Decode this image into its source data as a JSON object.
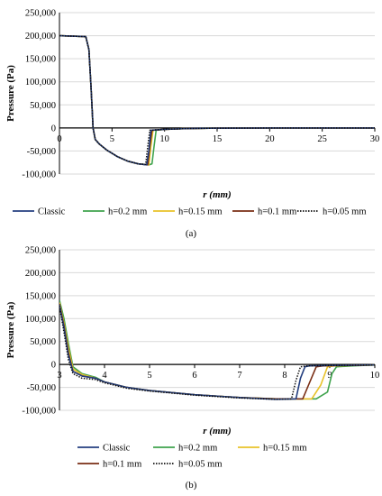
{
  "colors": {
    "Classic": "#243F80",
    "h=0.2 mm": "#3FA34D",
    "h=0.15 mm": "#E8C22A",
    "h=0.1 mm": "#7A2E14",
    "h=0.05 mm": "#111111",
    "grid": "#d9d9d9",
    "axis": "#000000"
  },
  "chart_data": [
    {
      "type": "line",
      "panel_label": "(a)",
      "xlabel": "r (mm)",
      "ylabel": "Pressure (Pa)",
      "xlim": [
        0,
        30
      ],
      "ylim": [
        -100000,
        250000
      ],
      "x_ticks": [
        0,
        5,
        10,
        15,
        20,
        25,
        30
      ],
      "x_tick_labels": [
        "0",
        "5",
        "10",
        "15",
        "20",
        "25",
        "30"
      ],
      "y_ticks": [
        250000,
        200000,
        150000,
        100000,
        50000,
        0,
        -50000,
        -100000
      ],
      "y_tick_labels": [
        "250,000",
        "200,000",
        "150,000",
        "100,000",
        "50,000",
        "0",
        "-50,000",
        "-100,000"
      ],
      "grid": "horizontal",
      "legend_position": "bottom",
      "series": [
        {
          "name": "Classic",
          "style": "solid",
          "x": [
            0,
            2.5,
            2.8,
            3.0,
            3.2,
            3.4,
            3.8,
            4.5,
            5.5,
            6.5,
            7.5,
            8.3,
            8.5,
            8.7,
            10,
            12,
            15,
            20,
            25,
            30
          ],
          "y": [
            200000,
            198000,
            170000,
            90000,
            0,
            -25000,
            -35000,
            -48000,
            -62000,
            -72000,
            -78000,
            -80000,
            -50000,
            -5000,
            -3000,
            -1500,
            -500,
            0,
            0,
            0
          ]
        },
        {
          "name": "h=0.2 mm",
          "style": "solid",
          "x": [
            0,
            2.5,
            2.8,
            3.0,
            3.2,
            3.4,
            3.8,
            4.5,
            5.5,
            6.5,
            7.5,
            8.5,
            8.8,
            9.0,
            9.2,
            10,
            12,
            15,
            20,
            25,
            30
          ],
          "y": [
            200000,
            198000,
            170000,
            90000,
            0,
            -25000,
            -35000,
            -48000,
            -62000,
            -72000,
            -78000,
            -80000,
            -78000,
            -40000,
            -5000,
            -3000,
            -1500,
            -500,
            0,
            0,
            0
          ]
        },
        {
          "name": "h=0.15 mm",
          "style": "solid",
          "x": [
            0,
            2.5,
            2.8,
            3.0,
            3.2,
            3.4,
            3.8,
            4.5,
            5.5,
            6.5,
            7.5,
            8.5,
            8.7,
            8.9,
            10,
            12,
            15,
            20,
            25,
            30
          ],
          "y": [
            200000,
            198000,
            170000,
            90000,
            0,
            -25000,
            -35000,
            -48000,
            -62000,
            -72000,
            -78000,
            -80000,
            -40000,
            -5000,
            -3000,
            -1500,
            -500,
            0,
            0,
            0
          ]
        },
        {
          "name": "h=0.1 mm",
          "style": "solid",
          "x": [
            0,
            2.5,
            2.8,
            3.0,
            3.2,
            3.4,
            3.8,
            4.5,
            5.5,
            6.5,
            7.5,
            8.4,
            8.6,
            8.8,
            10,
            12,
            15,
            20,
            25,
            30
          ],
          "y": [
            200000,
            198000,
            170000,
            90000,
            0,
            -25000,
            -35000,
            -48000,
            -62000,
            -72000,
            -78000,
            -80000,
            -40000,
            -5000,
            -3000,
            -1500,
            -500,
            0,
            0,
            0
          ]
        },
        {
          "name": "h=0.05 mm",
          "style": "dotted",
          "x": [
            0,
            2.5,
            2.8,
            3.0,
            3.2,
            3.4,
            3.8,
            4.5,
            5.5,
            6.5,
            7.5,
            8.2,
            8.4,
            8.6,
            10,
            12,
            15,
            20,
            25,
            30
          ],
          "y": [
            200000,
            198000,
            170000,
            90000,
            0,
            -25000,
            -35000,
            -48000,
            -62000,
            -72000,
            -78000,
            -79000,
            -40000,
            -5000,
            -3000,
            -1500,
            -500,
            0,
            0,
            0
          ]
        }
      ]
    },
    {
      "type": "line",
      "panel_label": "(b)",
      "xlabel": "r (mm)",
      "ylabel": "Pressure (Pa)",
      "xlim": [
        3,
        10
      ],
      "ylim": [
        -100000,
        250000
      ],
      "x_ticks": [
        3,
        4,
        5,
        6,
        7,
        8,
        9,
        10
      ],
      "x_tick_labels": [
        "3",
        "4",
        "5",
        "6",
        "7",
        "8",
        "9",
        "10"
      ],
      "y_ticks": [
        250000,
        200000,
        150000,
        100000,
        50000,
        0,
        -50000,
        -100000
      ],
      "y_tick_labels": [
        "250,000",
        "200,000",
        "150,000",
        "100,000",
        "50,000",
        "0",
        "-50,000",
        "-100,000"
      ],
      "grid": "horizontal",
      "legend_position": "bottom",
      "series": [
        {
          "name": "Classic",
          "style": "solid",
          "x": [
            3.0,
            3.1,
            3.2,
            3.3,
            3.5,
            3.8,
            4.0,
            4.5,
            5.0,
            6.0,
            7.0,
            7.8,
            8.25,
            8.35,
            8.45,
            8.55,
            9.0,
            10.0
          ],
          "y": [
            130000,
            80000,
            20000,
            -15000,
            -25000,
            -30000,
            -38000,
            -50000,
            -57000,
            -66000,
            -72000,
            -76000,
            -75000,
            -30000,
            -5000,
            -3000,
            -2000,
            -1000
          ]
        },
        {
          "name": "h=0.2 mm",
          "style": "solid",
          "x": [
            3.0,
            3.1,
            3.2,
            3.3,
            3.5,
            3.8,
            4.0,
            4.5,
            5.0,
            6.0,
            7.0,
            7.8,
            8.7,
            8.95,
            9.05,
            9.15,
            9.5,
            10.0
          ],
          "y": [
            140000,
            100000,
            45000,
            -5000,
            -20000,
            -28000,
            -38000,
            -50000,
            -57000,
            -66000,
            -72000,
            -75000,
            -75000,
            -60000,
            -20000,
            -5000,
            -3000,
            -1000
          ]
        },
        {
          "name": "h=0.15 mm",
          "style": "solid",
          "x": [
            3.0,
            3.1,
            3.2,
            3.3,
            3.5,
            3.8,
            4.0,
            4.5,
            5.0,
            6.0,
            7.0,
            7.8,
            8.6,
            8.8,
            8.95,
            9.1,
            9.5,
            10.0
          ],
          "y": [
            135000,
            90000,
            35000,
            -10000,
            -22000,
            -30000,
            -38000,
            -50000,
            -57000,
            -66000,
            -72000,
            -75000,
            -75000,
            -45000,
            -5000,
            -3000,
            -2000,
            -1000
          ]
        },
        {
          "name": "h=0.1 mm",
          "style": "solid",
          "x": [
            3.0,
            3.1,
            3.2,
            3.3,
            3.5,
            3.8,
            4.0,
            4.5,
            5.0,
            6.0,
            7.0,
            7.8,
            8.4,
            8.55,
            8.7,
            8.85,
            9.5,
            10.0
          ],
          "y": [
            132000,
            85000,
            25000,
            -15000,
            -25000,
            -30000,
            -38000,
            -50000,
            -57000,
            -66000,
            -72000,
            -75000,
            -75000,
            -40000,
            -5000,
            -3000,
            -2000,
            -1000
          ]
        },
        {
          "name": "h=0.05 mm",
          "style": "dotted",
          "x": [
            3.0,
            3.1,
            3.2,
            3.3,
            3.5,
            3.8,
            4.0,
            4.5,
            5.0,
            6.0,
            7.0,
            7.8,
            8.15,
            8.25,
            8.35,
            8.5,
            9.0,
            10.0
          ],
          "y": [
            128000,
            70000,
            10000,
            -20000,
            -30000,
            -33000,
            -40000,
            -52000,
            -58000,
            -67000,
            -73000,
            -76000,
            -75000,
            -35000,
            -5000,
            -3000,
            -2000,
            -1000
          ]
        }
      ]
    }
  ]
}
